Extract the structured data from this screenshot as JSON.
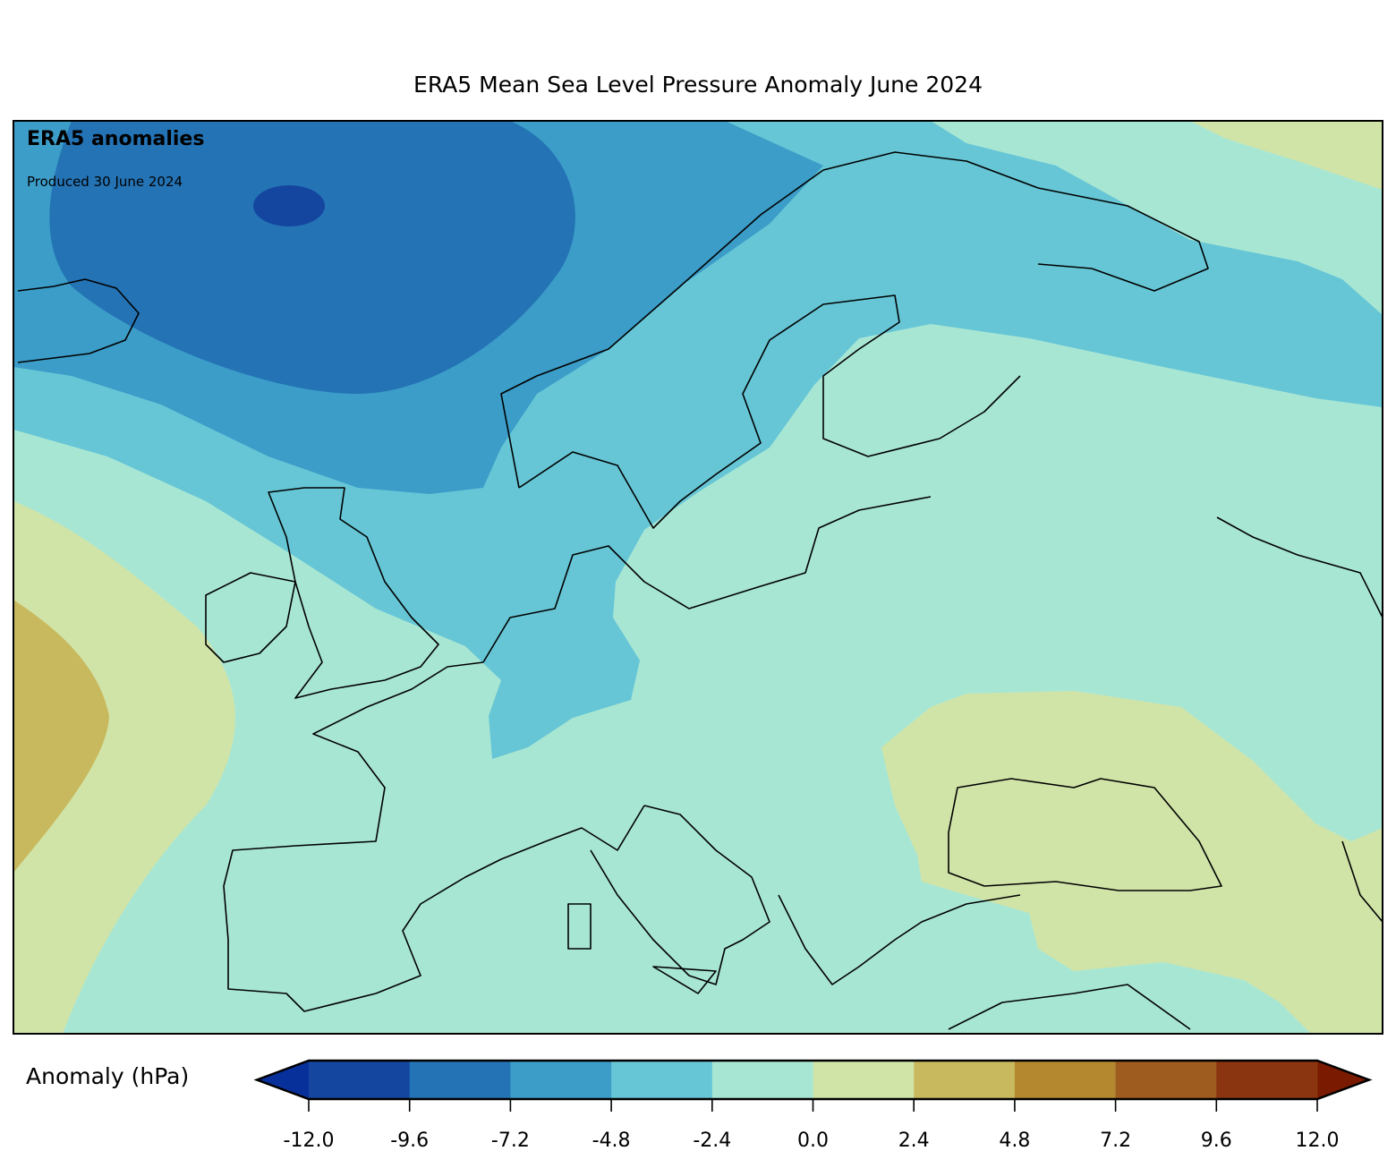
{
  "title": "ERA5 Mean Sea Level Pressure Anomaly June 2024",
  "annotation": {
    "heading": "ERA5 anomalies",
    "produced": "Produced 30 June 2024"
  },
  "colorbar": {
    "label": "Anomaly (hPa)",
    "ticks": [
      "-12.0",
      "-9.6",
      "-7.2",
      "-4.8",
      "-2.4",
      "0.0",
      "2.4",
      "4.8",
      "7.2",
      "9.6",
      "12.0"
    ],
    "extend_min_color": "#08309a",
    "extend_max_color": "#7a1a00",
    "colors": [
      "#1446a0",
      "#2473b5",
      "#3b9dc8",
      "#66c6d6",
      "#a8e6d4",
      "#d0e4a8",
      "#c9b95e",
      "#b3882f",
      "#9e5c1e",
      "#8a3410"
    ]
  }
}
